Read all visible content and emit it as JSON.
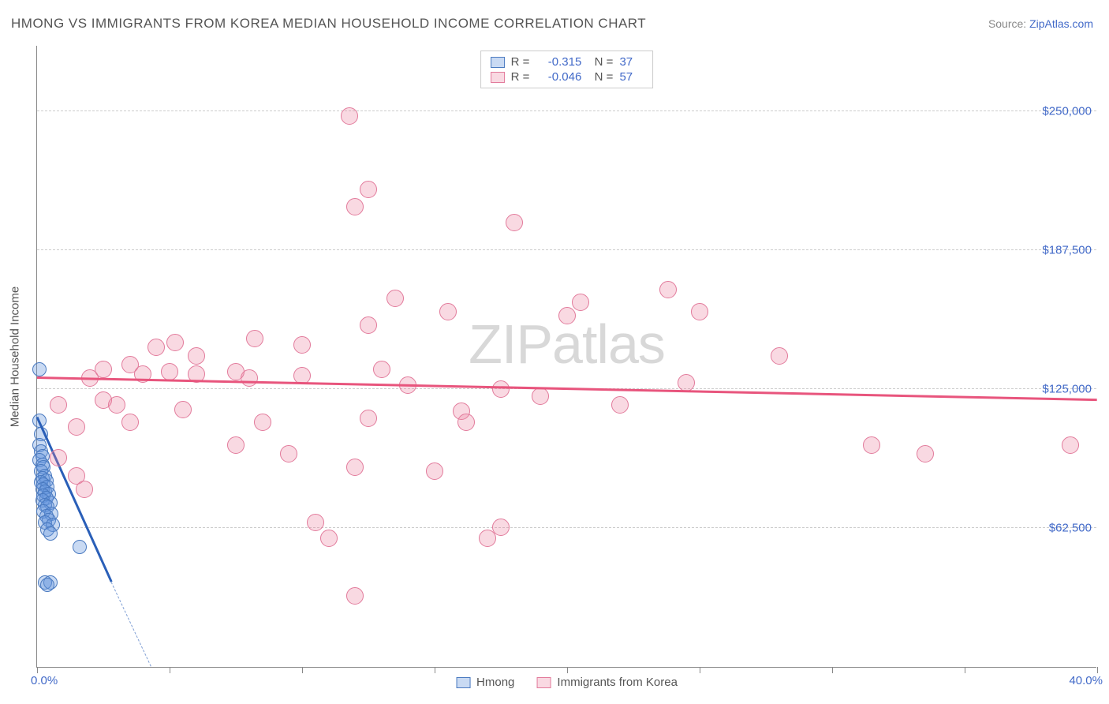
{
  "title": "HMONG VS IMMIGRANTS FROM KOREA MEDIAN HOUSEHOLD INCOME CORRELATION CHART",
  "source_label": "Source:",
  "source_link": "ZipAtlas.com",
  "watermark_a": "ZIP",
  "watermark_b": "atlas",
  "chart": {
    "type": "scatter",
    "ylabel": "Median Household Income",
    "xlim": [
      0,
      40
    ],
    "ylim": [
      0,
      280000
    ],
    "xmin_label": "0.0%",
    "xmax_label": "40.0%",
    "yticks": [
      62500,
      125000,
      187500,
      250000
    ],
    "ytick_labels": [
      "$62,500",
      "$125,000",
      "$187,500",
      "$250,000"
    ],
    "xtick_positions": [
      0,
      5,
      10,
      15,
      20,
      25,
      30,
      35,
      40
    ],
    "grid_color": "#cccccc",
    "axis_color": "#888888",
    "background_color": "#ffffff",
    "series": [
      {
        "name": "Hmong",
        "marker_fill": "rgba(100,150,220,0.35)",
        "marker_stroke": "#4a7ac0",
        "trend_color": "#2a5fb8",
        "marker_radius": 9,
        "R": "-0.315",
        "N": "37",
        "trend": {
          "x1": 0,
          "y1": 112000,
          "x2": 2.8,
          "y2": 38000
        },
        "trend_dash": {
          "x1": 2.8,
          "y1": 38000,
          "x2": 4.3,
          "y2": 0
        },
        "points": [
          [
            0.1,
            134000
          ],
          [
            0.1,
            111000
          ],
          [
            0.15,
            105000
          ],
          [
            0.1,
            100000
          ],
          [
            0.15,
            97000
          ],
          [
            0.2,
            95000
          ],
          [
            0.1,
            93000
          ],
          [
            0.2,
            91000
          ],
          [
            0.25,
            90000
          ],
          [
            0.15,
            88000
          ],
          [
            0.3,
            86000
          ],
          [
            0.2,
            85000
          ],
          [
            0.35,
            84000
          ],
          [
            0.15,
            83000
          ],
          [
            0.25,
            82000
          ],
          [
            0.4,
            81000
          ],
          [
            0.2,
            80000
          ],
          [
            0.3,
            79000
          ],
          [
            0.45,
            78000
          ],
          [
            0.25,
            77000
          ],
          [
            0.35,
            76000
          ],
          [
            0.2,
            75000
          ],
          [
            0.5,
            74000
          ],
          [
            0.3,
            73000
          ],
          [
            0.4,
            72000
          ],
          [
            0.25,
            70000
          ],
          [
            0.55,
            69000
          ],
          [
            0.35,
            68000
          ],
          [
            0.45,
            66000
          ],
          [
            0.3,
            65000
          ],
          [
            0.6,
            64000
          ],
          [
            0.4,
            62000
          ],
          [
            0.5,
            60000
          ],
          [
            1.6,
            54000
          ],
          [
            0.3,
            38000
          ],
          [
            0.5,
            38000
          ],
          [
            0.4,
            37000
          ]
        ]
      },
      {
        "name": "Immigrants from Korea",
        "marker_fill": "rgba(235,130,160,0.30)",
        "marker_stroke": "#e27a9b",
        "trend_color": "#e8557d",
        "marker_radius": 11,
        "R": "-0.046",
        "N": "57",
        "trend": {
          "x1": 0,
          "y1": 130000,
          "x2": 40,
          "y2": 120000
        },
        "points": [
          [
            11.8,
            248000
          ],
          [
            12.5,
            215000
          ],
          [
            12.0,
            207000
          ],
          [
            18.0,
            200000
          ],
          [
            23.8,
            170000
          ],
          [
            13.5,
            166000
          ],
          [
            15.5,
            160000
          ],
          [
            20.5,
            164000
          ],
          [
            20.0,
            158000
          ],
          [
            12.5,
            154000
          ],
          [
            8.2,
            148000
          ],
          [
            4.5,
            144000
          ],
          [
            5.2,
            146000
          ],
          [
            6.0,
            140000
          ],
          [
            10.0,
            145000
          ],
          [
            3.5,
            136000
          ],
          [
            2.5,
            134000
          ],
          [
            2.0,
            130000
          ],
          [
            4.0,
            132000
          ],
          [
            5.0,
            133000
          ],
          [
            6.0,
            132000
          ],
          [
            8.0,
            130000
          ],
          [
            7.5,
            133000
          ],
          [
            10.0,
            131000
          ],
          [
            13.0,
            134000
          ],
          [
            14.0,
            127000
          ],
          [
            17.5,
            125000
          ],
          [
            19.0,
            122000
          ],
          [
            22.0,
            118000
          ],
          [
            24.5,
            128000
          ],
          [
            2.5,
            120000
          ],
          [
            0.8,
            118000
          ],
          [
            1.5,
            108000
          ],
          [
            3.0,
            118000
          ],
          [
            3.5,
            110000
          ],
          [
            5.5,
            116000
          ],
          [
            8.5,
            110000
          ],
          [
            12.5,
            112000
          ],
          [
            16.0,
            115000
          ],
          [
            16.2,
            110000
          ],
          [
            15.0,
            88000
          ],
          [
            7.5,
            100000
          ],
          [
            9.5,
            96000
          ],
          [
            12.0,
            90000
          ],
          [
            0.8,
            94000
          ],
          [
            1.5,
            86000
          ],
          [
            1.8,
            80000
          ],
          [
            10.5,
            65000
          ],
          [
            11.0,
            58000
          ],
          [
            17.5,
            63000
          ],
          [
            17.0,
            58000
          ],
          [
            12.0,
            32000
          ],
          [
            31.5,
            100000
          ],
          [
            33.5,
            96000
          ],
          [
            39.0,
            100000
          ],
          [
            28.0,
            140000
          ],
          [
            25.0,
            160000
          ]
        ]
      }
    ],
    "legend_bottom": [
      "Hmong",
      "Immigrants from Korea"
    ]
  }
}
